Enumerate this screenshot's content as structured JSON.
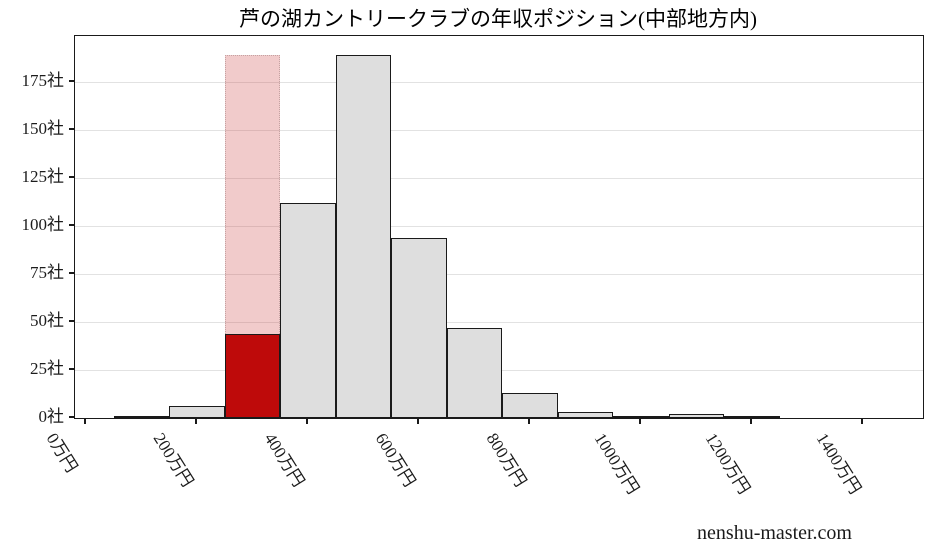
{
  "chart": {
    "title": "芦の湖カントリークラブの年収ポジション(中部地方内)",
    "watermark": "nenshu-master.com"
  },
  "chart_data": {
    "type": "bar",
    "subtype": "histogram",
    "title": "芦の湖カントリークラブの年収ポジション(中部地方内)",
    "xlabel": "",
    "ylabel": "",
    "x_unit": "万円",
    "y_unit": "社",
    "bin_start": 50,
    "bin_width": 100,
    "values": [
      1,
      6,
      44,
      112,
      189,
      94,
      47,
      13,
      3,
      1,
      2,
      1
    ],
    "bin_edges": [
      50,
      150,
      250,
      350,
      450,
      550,
      650,
      750,
      850,
      950,
      1050,
      1150,
      1250
    ],
    "highlight": {
      "bin_index": 2,
      "bin_range_label": "250-350万円",
      "bar_value": 44,
      "band_top_value": 189,
      "bar_color": "#be0a0a",
      "band_color": "#f2cccc"
    },
    "x_ticks": [
      {
        "value": 0,
        "label": "0万円"
      },
      {
        "value": 200,
        "label": "200万円"
      },
      {
        "value": 400,
        "label": "400万円"
      },
      {
        "value": 600,
        "label": "600万円"
      },
      {
        "value": 800,
        "label": "800万円"
      },
      {
        "value": 1000,
        "label": "1000万円"
      },
      {
        "value": 1200,
        "label": "1200万円"
      },
      {
        "value": 1400,
        "label": "1400万円"
      }
    ],
    "y_ticks": [
      {
        "value": 0,
        "label": "0社"
      },
      {
        "value": 25,
        "label": "25社"
      },
      {
        "value": 50,
        "label": "50社"
      },
      {
        "value": 75,
        "label": "75社"
      },
      {
        "value": 100,
        "label": "100社"
      },
      {
        "value": 125,
        "label": "125社"
      },
      {
        "value": 150,
        "label": "150社"
      },
      {
        "value": 175,
        "label": "175社"
      }
    ],
    "xlim": [
      -20,
      1508
    ],
    "ylim": [
      0,
      199
    ],
    "grid": true,
    "legend_position": "none",
    "bar_color": "#dedede",
    "edge_color": "#1a1a1a",
    "grid_color": "#e2e2e2",
    "background_color": "#ffffff"
  }
}
